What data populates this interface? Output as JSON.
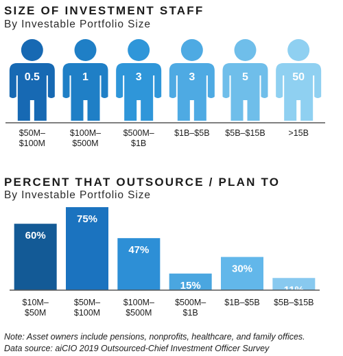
{
  "colors": {
    "figures": [
      "#1769b3",
      "#1f7fc6",
      "#2f96d9",
      "#4eaae3",
      "#6fbeea",
      "#8fd0f1"
    ],
    "bars": [
      "#135a96",
      "#1b73bf",
      "#2d8fd6",
      "#4aa6e0",
      "#62b7ea",
      "#88c9ef"
    ],
    "axis": "#555555"
  },
  "chart_data": [
    {
      "type": "pictogram",
      "title": "SIZE OF INVESTMENT STAFF",
      "subtitle": "By Investable Portfolio Size",
      "categories": [
        "$50M–\n$100M",
        "$100M–\n$500M",
        "$500M–\n$1B",
        "$1B–$5B",
        "$5B–$15B",
        ">15B"
      ],
      "values": [
        0.5,
        1,
        3,
        3,
        5,
        50
      ],
      "value_labels": [
        "0.5",
        "1",
        "3",
        "3",
        "5",
        "50"
      ]
    },
    {
      "type": "bar",
      "title": "PERCENT THAT OUTSOURCE / PLAN TO",
      "subtitle": "By Investable Portfolio Size",
      "categories": [
        "$10M–\n$50M",
        "$50M–\n$100M",
        "$100M–\n$500M",
        "$500M–\n$1B",
        "$1B–$5B",
        "$5B–$15B"
      ],
      "values": [
        60,
        75,
        47,
        15,
        30,
        11
      ],
      "value_labels": [
        "60%",
        "75%",
        "47%",
        "15%",
        "30%",
        "11%"
      ],
      "ylim": [
        0,
        75
      ],
      "grid": false
    }
  ],
  "notes": {
    "line1": "Note: Asset owners include pensions, nonprofits, healthcare, and family offices.",
    "line2": "Data source: aiCIO 2019 Outsourced-Chief Investment Officer Survey"
  }
}
